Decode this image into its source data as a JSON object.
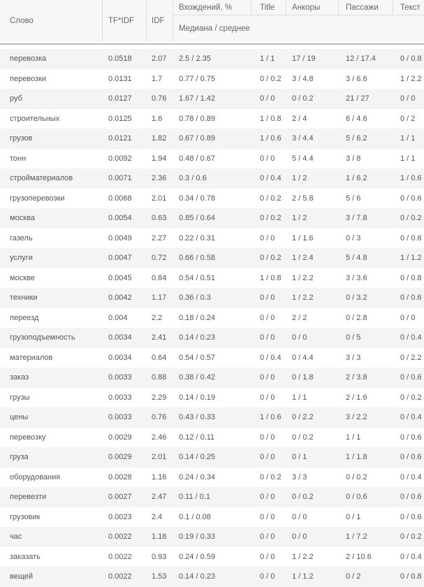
{
  "colors": {
    "header_bg": "#f6f7f8",
    "header_text": "#63676a",
    "cell_border": "#dcdfe2",
    "separator_line": "#b4b9bc",
    "row_stripe": "#f4f4f5",
    "body_text": "#515558"
  },
  "table": {
    "columns": [
      {
        "key": "word",
        "label": "Слово"
      },
      {
        "key": "tfidf",
        "label": "TF*IDF"
      },
      {
        "key": "idf",
        "label": "IDF"
      },
      {
        "key": "occurrences",
        "label": "Вхождений, %"
      },
      {
        "key": "title",
        "label": "Title"
      },
      {
        "key": "anchors",
        "label": "Анкоры"
      },
      {
        "key": "passages",
        "label": "Пассажи"
      },
      {
        "key": "text",
        "label": "Текст"
      }
    ],
    "subheader": "Медиана / среднее",
    "rows": [
      {
        "word": "перевозка",
        "tfidf": "0.0518",
        "idf": "2.07",
        "occurrences": "2.5 / 2.35",
        "title": "1 / 1",
        "anchors": "17 / 19",
        "passages": "12 / 17.4",
        "text": "0 / 0.8"
      },
      {
        "word": "перевозки",
        "tfidf": "0.0131",
        "idf": "1.7",
        "occurrences": "0.77 / 0.75",
        "title": "0 / 0.2",
        "anchors": "3 / 4.8",
        "passages": "3 / 6.6",
        "text": "1 / 2.2"
      },
      {
        "word": "руб",
        "tfidf": "0.0127",
        "idf": "0.76",
        "occurrences": "1.67 / 1.42",
        "title": "0 / 0",
        "anchors": "0 / 0.2",
        "passages": "21 / 27",
        "text": "0 / 0"
      },
      {
        "word": "строительных",
        "tfidf": "0.0125",
        "idf": "1.6",
        "occurrences": "0.78 / 0.89",
        "title": "1 / 0.8",
        "anchors": "2 / 4",
        "passages": "6 / 4.6",
        "text": "0 / 2"
      },
      {
        "word": "грузов",
        "tfidf": "0.0121",
        "idf": "1.82",
        "occurrences": "0.67 / 0.89",
        "title": "1 / 0.6",
        "anchors": "3 / 4.4",
        "passages": "5 / 6.2",
        "text": "1 / 1"
      },
      {
        "word": "тонн",
        "tfidf": "0.0092",
        "idf": "1.94",
        "occurrences": "0.48 / 0.67",
        "title": "0 / 0",
        "anchors": "5 / 4.4",
        "passages": "3 / 8",
        "text": "1 / 1"
      },
      {
        "word": "стройматериалов",
        "tfidf": "0.0071",
        "idf": "2.36",
        "occurrences": "0.3 / 0.6",
        "title": "0 / 0.4",
        "anchors": "1 / 2",
        "passages": "1 / 6.2",
        "text": "1 / 0.6"
      },
      {
        "word": "грузоперевозки",
        "tfidf": "0.0068",
        "idf": "2.01",
        "occurrences": "0.34 / 0.78",
        "title": "0 / 0.2",
        "anchors": "2 / 5.8",
        "passages": "5 / 6",
        "text": "0 / 0.6"
      },
      {
        "word": "москва",
        "tfidf": "0.0054",
        "idf": "0.63",
        "occurrences": "0.85 / 0.64",
        "title": "0 / 0.2",
        "anchors": "1 / 2",
        "passages": "3 / 7.8",
        "text": "0 / 0.2"
      },
      {
        "word": "газель",
        "tfidf": "0.0049",
        "idf": "2.27",
        "occurrences": "0.22 / 0.31",
        "title": "0 / 0",
        "anchors": "1 / 1.6",
        "passages": "0 / 3",
        "text": "0 / 0.6"
      },
      {
        "word": "услуги",
        "tfidf": "0.0047",
        "idf": "0.72",
        "occurrences": "0.66 / 0.58",
        "title": "0 / 0.2",
        "anchors": "1 / 2.4",
        "passages": "5 / 4.8",
        "text": "1 / 1.2"
      },
      {
        "word": "москве",
        "tfidf": "0.0045",
        "idf": "0.84",
        "occurrences": "0.54 / 0.51",
        "title": "1 / 0.8",
        "anchors": "1 / 2.2",
        "passages": "3 / 3.6",
        "text": "0 / 0.8"
      },
      {
        "word": "техники",
        "tfidf": "0.0042",
        "idf": "1.17",
        "occurrences": "0.36 / 0.3",
        "title": "0 / 0",
        "anchors": "1 / 2.2",
        "passages": "0 / 3.2",
        "text": "0 / 0.6"
      },
      {
        "word": "переезд",
        "tfidf": "0.004",
        "idf": "2.2",
        "occurrences": "0.18 / 0.24",
        "title": "0 / 0",
        "anchors": "2 / 2",
        "passages": "0 / 2.8",
        "text": "0 / 0"
      },
      {
        "word": "грузоподъемность",
        "tfidf": "0.0034",
        "idf": "2.41",
        "occurrences": "0.14 / 0.23",
        "title": "0 / 0",
        "anchors": "0 / 0",
        "passages": "0 / 5",
        "text": "0 / 0.4"
      },
      {
        "word": "материалов",
        "tfidf": "0.0034",
        "idf": "0.64",
        "occurrences": "0.54 / 0.57",
        "title": "0 / 0.4",
        "anchors": "0 / 4.4",
        "passages": "3 / 3",
        "text": "0 / 2.2"
      },
      {
        "word": "заказ",
        "tfidf": "0.0033",
        "idf": "0.88",
        "occurrences": "0.38 / 0.42",
        "title": "0 / 0",
        "anchors": "0 / 1.8",
        "passages": "2 / 3.8",
        "text": "0 / 0.6"
      },
      {
        "word": "грузы",
        "tfidf": "0.0033",
        "idf": "2.29",
        "occurrences": "0.14 / 0.19",
        "title": "0 / 0",
        "anchors": "1 / 1",
        "passages": "2 / 1.6",
        "text": "0 / 0.2"
      },
      {
        "word": "цены",
        "tfidf": "0.0033",
        "idf": "0.76",
        "occurrences": "0.43 / 0.33",
        "title": "1 / 0.6",
        "anchors": "0 / 2.2",
        "passages": "3 / 2.2",
        "text": "0 / 0.4"
      },
      {
        "word": "перевозку",
        "tfidf": "0.0029",
        "idf": "2.46",
        "occurrences": "0.12 / 0.11",
        "title": "0 / 0",
        "anchors": "0 / 0.2",
        "passages": "1 / 1",
        "text": "0 / 0.6"
      },
      {
        "word": "груза",
        "tfidf": "0.0029",
        "idf": "2.01",
        "occurrences": "0.14 / 0.25",
        "title": "0 / 0",
        "anchors": "0 / 1",
        "passages": "1 / 1.8",
        "text": "0 / 0.6"
      },
      {
        "word": "оборудования",
        "tfidf": "0.0028",
        "idf": "1.16",
        "occurrences": "0.24 / 0.34",
        "title": "0 / 0.2",
        "anchors": "3 / 3",
        "passages": "0 / 0.2",
        "text": "0 / 0.4"
      },
      {
        "word": "перевезти",
        "tfidf": "0.0027",
        "idf": "2.47",
        "occurrences": "0.11 / 0.1",
        "title": "0 / 0",
        "anchors": "0 / 0.2",
        "passages": "0 / 0.6",
        "text": "0 / 0.6"
      },
      {
        "word": "грузовик",
        "tfidf": "0.0023",
        "idf": "2.4",
        "occurrences": "0.1 / 0.08",
        "title": "0 / 0",
        "anchors": "0 / 0",
        "passages": "0 / 1",
        "text": "0 / 0.6"
      },
      {
        "word": "час",
        "tfidf": "0.0022",
        "idf": "1.18",
        "occurrences": "0.19 / 0.33",
        "title": "0 / 0",
        "anchors": "0 / 0",
        "passages": "1 / 7.2",
        "text": "0 / 0.2"
      },
      {
        "word": "заказать",
        "tfidf": "0.0022",
        "idf": "0.93",
        "occurrences": "0.24 / 0.59",
        "title": "0 / 0",
        "anchors": "1 / 2.2",
        "passages": "2 / 10.6",
        "text": "0 / 0.4"
      },
      {
        "word": "вещей",
        "tfidf": "0.0022",
        "idf": "1.53",
        "occurrences": "0.14 / 0.23",
        "title": "0 / 0",
        "anchors": "1 / 1.2",
        "passages": "0 / 2",
        "text": "0 / 0.8"
      }
    ]
  }
}
